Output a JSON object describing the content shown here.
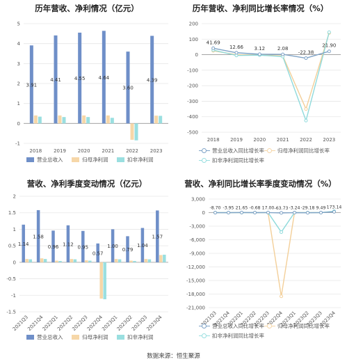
{
  "source": "数据来源：恒生聚源",
  "colors": {
    "revenue": "#6f8fc8",
    "net_profit": "#f6d7a8",
    "deducted": "#9adfe0",
    "grid": "#e6e6e6",
    "axis": "#999999",
    "label": "#333333"
  },
  "chart_data": [
    {
      "id": "annual_values",
      "type": "bar",
      "title": "历年营收、净利情况（亿元）",
      "categories": [
        "2018",
        "2019",
        "2020",
        "2021",
        "2022",
        "2023"
      ],
      "ylim": [
        -1,
        5
      ],
      "yticks": [
        -1,
        0,
        1,
        2,
        3,
        4,
        5
      ],
      "series": [
        {
          "name": "营业总收入",
          "color_key": "revenue",
          "values": [
            3.91,
            4.41,
            4.55,
            4.64,
            3.6,
            4.39
          ],
          "labels": [
            "3.91",
            "4.41",
            "4.55",
            "4.64",
            "3.60",
            "4.39"
          ]
        },
        {
          "name": "归母净利润",
          "color_key": "net_profit",
          "values": [
            0.4,
            0.4,
            0.4,
            0.4,
            -0.82,
            0.39
          ]
        },
        {
          "name": "扣非净利润",
          "color_key": "deducted",
          "values": [
            0.34,
            0.32,
            0.32,
            0.28,
            -0.85,
            0.38
          ]
        }
      ],
      "grid": true,
      "legend": "bottom"
    },
    {
      "id": "annual_growth",
      "type": "line",
      "title": "历年营收、净利同比增长率情况（%）",
      "categories": [
        "2018",
        "2019",
        "2020",
        "2021",
        "2022",
        "2023"
      ],
      "ylim": [
        -500,
        200
      ],
      "yticks": [
        -500,
        -400,
        -300,
        -200,
        -100,
        0,
        100,
        200
      ],
      "series": [
        {
          "name": "营业总收入同比增长率",
          "color_key": "revenue",
          "values": [
            41.69,
            12.66,
            3.12,
            2.08,
            -22.38,
            21.9
          ],
          "labels": [
            "41.69",
            "12.66",
            "3.12",
            "2.08",
            "-22.38",
            "21.90"
          ]
        },
        {
          "name": "归母净利润同比增长率",
          "color_key": "net_profit",
          "values": [
            25,
            0,
            -2,
            -8,
            -350,
            140
          ]
        },
        {
          "name": "扣非净利润同比增长率",
          "color_key": "deducted",
          "values": [
            30,
            -5,
            -3,
            -12,
            -425,
            145
          ]
        }
      ],
      "grid": true,
      "legend": "bottom"
    },
    {
      "id": "quarterly_values",
      "type": "bar",
      "title": "营收、净利季度变动情况（亿元）",
      "categories": [
        "2021Q3",
        "2021Q4",
        "2022Q1",
        "2022Q2",
        "2022Q3",
        "2022Q4",
        "2023Q1",
        "2023Q2",
        "2023Q3",
        "2023Q4"
      ],
      "ylim": [
        -1.5,
        2
      ],
      "yticks": [
        -1.5,
        -1,
        -0.5,
        0,
        0.5,
        1,
        1.5,
        2
      ],
      "series": [
        {
          "name": "营业总收入",
          "color_key": "revenue",
          "values": [
            1.14,
            1.58,
            0.96,
            1.12,
            0.95,
            0.57,
            1.0,
            0.79,
            1.04,
            1.57
          ],
          "labels": [
            "1.14",
            "1.58",
            "0.96",
            "1.12",
            "0.95",
            "0.57",
            "1.00",
            "0.79",
            "1.04",
            "1.57"
          ]
        },
        {
          "name": "归母净利润",
          "color_key": "net_profit",
          "values": [
            0.1,
            0.12,
            0.05,
            0.1,
            0.06,
            -1.1,
            0.1,
            0.05,
            0.1,
            0.22
          ]
        },
        {
          "name": "扣非净利润",
          "color_key": "deducted",
          "values": [
            0.09,
            0.1,
            0.04,
            0.09,
            0.05,
            -1.12,
            0.09,
            0.04,
            0.09,
            0.23
          ]
        }
      ],
      "grid": true,
      "legend": "bottom"
    },
    {
      "id": "quarterly_growth",
      "type": "line",
      "title": "营收、净利同比增长率季度变动情况（%）",
      "categories": [
        "2021Q3",
        "2021Q4",
        "2022Q1",
        "2022Q2",
        "2022Q3",
        "2022Q4",
        "2023Q1",
        "2023Q2",
        "2023Q3",
        "2023Q4"
      ],
      "ylim": [
        -21000,
        3000
      ],
      "yticks": [
        -21000,
        -18000,
        -15000,
        -12000,
        -9000,
        -6000,
        -3000,
        0,
        3000
      ],
      "series": [
        {
          "name": "营业总收入同比增长率",
          "color_key": "revenue",
          "values": [
            -8.7,
            -3.95,
            21.65,
            -0.68,
            17.0,
            -63.73,
            -3.24,
            -29.18,
            9.49,
            173.14
          ],
          "labels": [
            "-8.70",
            "-3.95",
            "21.65",
            "-0.68",
            "17.00",
            "-63.73",
            "-3.24",
            "-29.18",
            "9.49",
            "173.14"
          ]
        },
        {
          "name": "归母净利润同比增长率",
          "color_key": "net_profit",
          "values": [
            0,
            0,
            0,
            0,
            0,
            -18500,
            0,
            0,
            0,
            200
          ]
        },
        {
          "name": "扣非净利润同比增长率",
          "color_key": "deducted",
          "values": [
            0,
            0,
            0,
            0,
            0,
            -4300,
            0,
            0,
            0,
            300
          ]
        }
      ],
      "grid": true,
      "legend": "bottom"
    }
  ]
}
